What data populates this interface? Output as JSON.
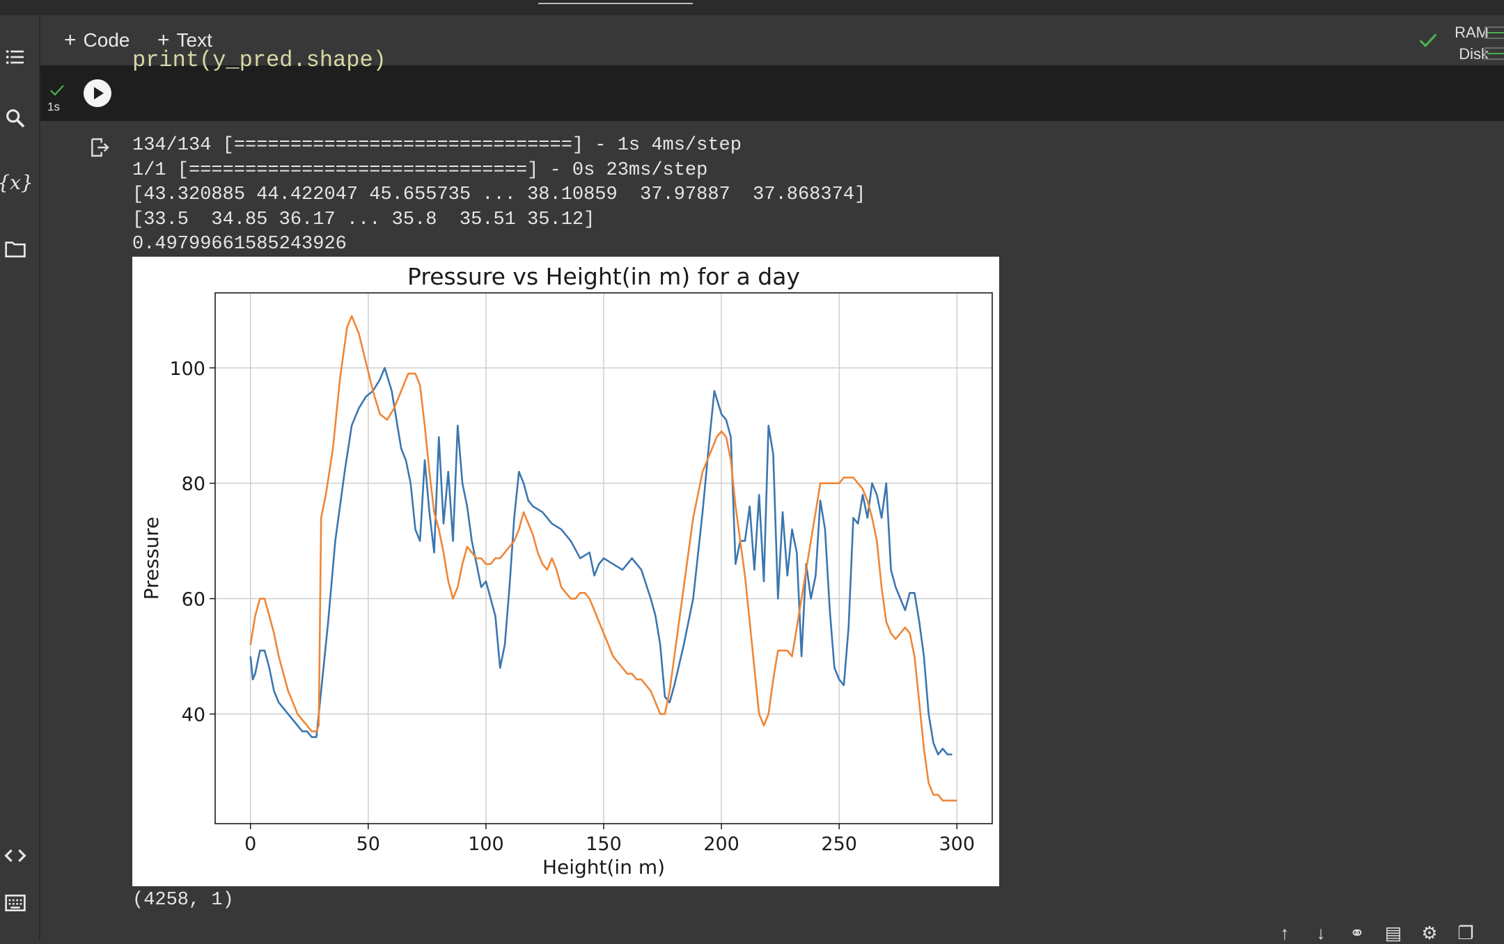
{
  "toolbar": {
    "add_code": "Code",
    "add_text": "Text",
    "ram_label": "RAM",
    "disk_label": "Disk"
  },
  "cell": {
    "code_line": "print(y_pred.shape)",
    "exec_time": "1s"
  },
  "output": {
    "lines": [
      "134/134 [==============================] - 1s 4ms/step",
      "1/1 [==============================] - 0s 23ms/step",
      "[43.320885 44.422047 45.655735 ... 38.10859  37.97887  37.868374]",
      "[33.5  34.85 36.17 ... 35.8  35.51 35.12]",
      "0.49799661585243926"
    ],
    "after_plot": "(4258, 1)"
  },
  "sidebar": {
    "icons": [
      "toc-icon",
      "search-icon",
      "variables-icon",
      "folder-icon",
      "code-snippets-icon",
      "terminal-icon"
    ]
  },
  "colors": {
    "series_blue": "#3b76af",
    "series_orange": "#ef8636",
    "accent_green": "#4caf50"
  },
  "chart_data": {
    "type": "line",
    "title": "Pressure vs Height(in m) for a day",
    "xlabel": "Height(in m)",
    "ylabel": "Pressure",
    "xlim": [
      -15,
      315
    ],
    "ylim": [
      21,
      113
    ],
    "xticks": [
      0,
      50,
      100,
      150,
      200,
      250,
      300
    ],
    "yticks": [
      40,
      60,
      80,
      100
    ],
    "grid": true,
    "series": [
      {
        "color": "#3b76af",
        "x": [
          0,
          1,
          2,
          4,
          6,
          8,
          10,
          12,
          14,
          16,
          18,
          20,
          22,
          24,
          26,
          28,
          30,
          33,
          36,
          40,
          43,
          46,
          49,
          52,
          55,
          57,
          60,
          62,
          64,
          66,
          68,
          70,
          72,
          74,
          76,
          78,
          80,
          82,
          84,
          86,
          88,
          90,
          92,
          94,
          96,
          98,
          100,
          102,
          104,
          106,
          108,
          110,
          112,
          114,
          116,
          118,
          120,
          124,
          128,
          132,
          136,
          140,
          144,
          146,
          148,
          150,
          154,
          158,
          162,
          166,
          170,
          172,
          174,
          176,
          178,
          180,
          184,
          188,
          192,
          195,
          197,
          200,
          202,
          204,
          206,
          208,
          210,
          212,
          214,
          216,
          218,
          220,
          222,
          224,
          226,
          228,
          230,
          232,
          234,
          236,
          238,
          240,
          242,
          244,
          246,
          248,
          250,
          252,
          254,
          256,
          258,
          260,
          262,
          264,
          266,
          268,
          270,
          272,
          274,
          276,
          278,
          280,
          282,
          284,
          286,
          288,
          290,
          292,
          294,
          296,
          298
        ],
        "y": [
          50,
          46,
          47,
          51,
          51,
          48,
          44,
          42,
          41,
          40,
          39,
          38,
          37,
          37,
          36,
          36,
          44,
          56,
          70,
          82,
          90,
          93,
          95,
          96,
          98,
          100,
          96,
          91,
          86,
          84,
          80,
          72,
          70,
          84,
          75,
          68,
          88,
          73,
          82,
          70,
          90,
          80,
          76,
          70,
          66,
          62,
          63,
          60,
          57,
          48,
          52,
          62,
          74,
          82,
          80,
          77,
          76,
          75,
          73,
          72,
          70,
          67,
          68,
          64,
          66,
          67,
          66,
          65,
          67,
          65,
          60,
          57,
          52,
          43,
          42,
          45,
          52,
          60,
          75,
          88,
          96,
          92,
          91,
          88,
          66,
          70,
          70,
          76,
          65,
          78,
          63,
          90,
          85,
          60,
          75,
          64,
          72,
          68,
          50,
          66,
          60,
          64,
          77,
          72,
          58,
          48,
          46,
          45,
          55,
          74,
          73,
          78,
          74,
          80,
          78,
          74,
          80,
          65,
          62,
          60,
          58,
          61,
          61,
          56,
          50,
          40,
          35,
          33,
          34,
          33,
          33
        ],
        "values": [
          50,
          46,
          47,
          51,
          51,
          48,
          44,
          42,
          41,
          40,
          39,
          38,
          37,
          37,
          36,
          36,
          44,
          56,
          70,
          82,
          90,
          93,
          95,
          96,
          98,
          100,
          96,
          91,
          86,
          84,
          80,
          72,
          70,
          84,
          75,
          68,
          88,
          73,
          82,
          70,
          90,
          80,
          76,
          70,
          66,
          62,
          63,
          60,
          57,
          48,
          52,
          62,
          74,
          82,
          80,
          77,
          76,
          75,
          73,
          72,
          70,
          67,
          68,
          64,
          66,
          67,
          66,
          65,
          67,
          65,
          60,
          57,
          52,
          43,
          42,
          45,
          52,
          60,
          75,
          88,
          96,
          92,
          91,
          88,
          66,
          70,
          70,
          76,
          65,
          78,
          63,
          90,
          85,
          60,
          75,
          64,
          72,
          68,
          50,
          66,
          60,
          64,
          77,
          72,
          58,
          48,
          46,
          45,
          55,
          74,
          73,
          78,
          74,
          80,
          78,
          74,
          80,
          65,
          62,
          60,
          58,
          61,
          61,
          56,
          50,
          40,
          35,
          33,
          34,
          33,
          33
        ]
      },
      {
        "color": "#ef8636",
        "x": [
          0,
          2,
          4,
          6,
          8,
          10,
          12,
          14,
          16,
          18,
          20,
          22,
          24,
          26,
          28,
          29,
          30,
          32,
          35,
          38,
          41,
          43,
          46,
          49,
          52,
          55,
          58,
          61,
          64,
          67,
          70,
          72,
          74,
          76,
          78,
          80,
          82,
          84,
          86,
          88,
          90,
          92,
          94,
          96,
          98,
          100,
          102,
          104,
          106,
          108,
          110,
          112,
          114,
          116,
          118,
          120,
          122,
          124,
          126,
          128,
          130,
          132,
          134,
          136,
          138,
          140,
          142,
          144,
          146,
          148,
          150,
          152,
          154,
          156,
          158,
          160,
          162,
          164,
          166,
          168,
          170,
          172,
          174,
          176,
          178,
          180,
          182,
          184,
          186,
          188,
          190,
          192,
          194,
          196,
          198,
          200,
          202,
          204,
          206,
          208,
          210,
          212,
          214,
          216,
          218,
          220,
          222,
          224,
          226,
          228,
          230,
          232,
          234,
          236,
          238,
          240,
          242,
          244,
          246,
          248,
          250,
          252,
          254,
          256,
          258,
          260,
          262,
          264,
          266,
          268,
          270,
          272,
          274,
          276,
          278,
          280,
          282,
          284,
          286,
          288,
          290,
          292,
          294,
          296,
          298,
          300
        ],
        "y": [
          52,
          57,
          60,
          60,
          57,
          54,
          50,
          47,
          44,
          42,
          40,
          39,
          38,
          37,
          37,
          38,
          74,
          78,
          86,
          98,
          107,
          109,
          106,
          101,
          96,
          92,
          91,
          93,
          96,
          99,
          99,
          97,
          90,
          82,
          75,
          72,
          68,
          63,
          60,
          62,
          66,
          69,
          68,
          67,
          67,
          66,
          66,
          67,
          67,
          68,
          69,
          70,
          72,
          75,
          73,
          71,
          68,
          66,
          65,
          67,
          65,
          62,
          61,
          60,
          60,
          61,
          61,
          60,
          58,
          56,
          54,
          52,
          50,
          49,
          48,
          47,
          47,
          46,
          46,
          45,
          44,
          42,
          40,
          40,
          44,
          50,
          56,
          62,
          68,
          74,
          78,
          82,
          84,
          86,
          88,
          89,
          88,
          84,
          76,
          70,
          64,
          56,
          48,
          40,
          38,
          40,
          46,
          51,
          51,
          51,
          50,
          55,
          60,
          65,
          70,
          75,
          80,
          80,
          80,
          80,
          80,
          81,
          81,
          81,
          80,
          79,
          77,
          74,
          70,
          62,
          56,
          54,
          53,
          54,
          55,
          54,
          50,
          42,
          34,
          28,
          26,
          26,
          25,
          25,
          25,
          25
        ],
        "values": [
          52,
          57,
          60,
          60,
          57,
          54,
          50,
          47,
          44,
          42,
          40,
          39,
          38,
          37,
          37,
          38,
          74,
          78,
          86,
          98,
          107,
          109,
          106,
          101,
          96,
          92,
          91,
          93,
          96,
          99,
          99,
          97,
          90,
          82,
          75,
          72,
          68,
          63,
          60,
          62,
          66,
          69,
          68,
          67,
          67,
          66,
          66,
          67,
          67,
          68,
          69,
          70,
          72,
          75,
          73,
          71,
          68,
          66,
          65,
          67,
          65,
          62,
          61,
          60,
          60,
          61,
          61,
          60,
          58,
          56,
          54,
          52,
          50,
          49,
          48,
          47,
          47,
          46,
          46,
          45,
          44,
          42,
          40,
          40,
          44,
          50,
          56,
          62,
          68,
          74,
          78,
          82,
          84,
          86,
          88,
          89,
          88,
          84,
          76,
          70,
          64,
          56,
          48,
          40,
          38,
          40,
          46,
          51,
          51,
          51,
          50,
          55,
          60,
          65,
          70,
          75,
          80,
          80,
          80,
          80,
          80,
          81,
          81,
          81,
          80,
          79,
          77,
          74,
          70,
          62,
          56,
          54,
          53,
          54,
          55,
          54,
          50,
          42,
          34,
          28,
          26,
          26,
          25,
          25,
          25,
          25
        ]
      }
    ]
  }
}
